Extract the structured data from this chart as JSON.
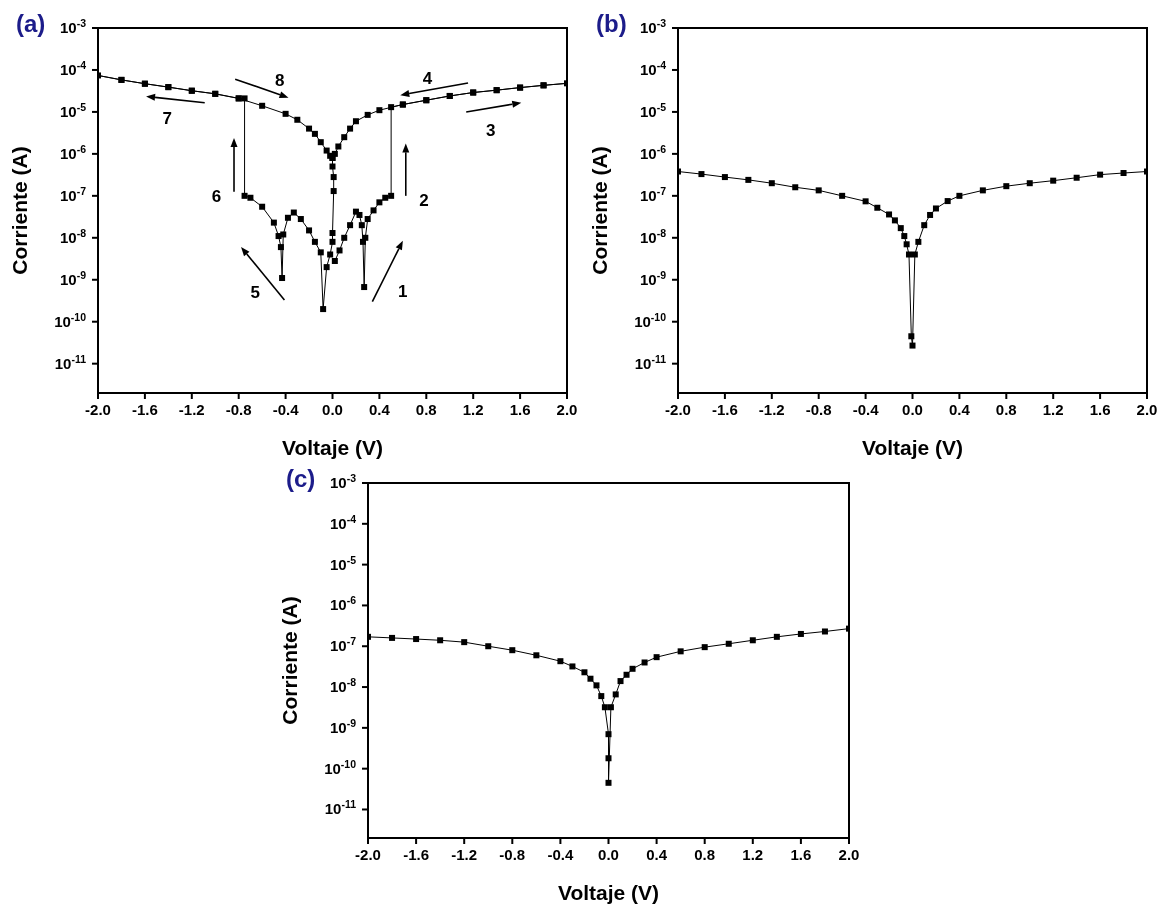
{
  "chart_data": [
    {
      "type": "line",
      "title": "(a)",
      "xlabel": "Voltaje (V)",
      "ylabel": "Corriente (A)",
      "log": "y",
      "marker": "square",
      "line_style": "solid",
      "xlim": [
        -2,
        2
      ],
      "xticks": [
        {
          "value": -2,
          "label": "-2.0"
        },
        {
          "value": -1.6,
          "label": "-1.6"
        },
        {
          "value": -1.2,
          "label": "-1.2"
        },
        {
          "value": -0.8,
          "label": "-0.8"
        },
        {
          "value": -0.4,
          "label": "-0.4"
        },
        {
          "value": 0,
          "label": "0.0"
        },
        {
          "value": 0.4,
          "label": "0.4"
        },
        {
          "value": 0.8,
          "label": "0.8"
        },
        {
          "value": 1.2,
          "label": "1.2"
        },
        {
          "value": 1.6,
          "label": "1.6"
        },
        {
          "value": 2,
          "label": "2.0"
        }
      ],
      "ylim": [
        2e-12,
        0.001
      ],
      "yticks": [
        {
          "value": 0.001,
          "label": "10$^{-3}$"
        },
        {
          "value": 0.0001,
          "label": "10$^{-4}$"
        },
        {
          "value": 1e-05,
          "label": "10$^{-5}$"
        },
        {
          "value": 1e-06,
          "label": "10$^{-6}$"
        },
        {
          "value": 1e-07,
          "label": "10$^{-7}$"
        },
        {
          "value": 1e-08,
          "label": "10$^{-8}$"
        },
        {
          "value": 1e-09,
          "label": "10$^{-9}$"
        },
        {
          "value": 1e-10,
          "label": "10$^{-10}$"
        },
        {
          "value": 1e-11,
          "label": "10$^{-11}$"
        }
      ],
      "annotations": [
        "1",
        "2",
        "3",
        "4",
        "5",
        "6",
        "7",
        "8"
      ],
      "series": [
        {
          "color": "#000000",
          "x": [
            0.02,
            0.06,
            0.1,
            0.15,
            0.2,
            0.23,
            0.25,
            0.26,
            0.27,
            0.28,
            0.3,
            0.35,
            0.4,
            0.45,
            0.5,
            0.5,
            0.6,
            0.8,
            1.0,
            1.2,
            1.4,
            1.6,
            1.8,
            2.0,
            1.8,
            1.6,
            1.4,
            1.2,
            1.0,
            0.8,
            0.6,
            0.4,
            0.3,
            0.2,
            0.15,
            0.1,
            0.05,
            0.02,
            0,
            0,
            0.01,
            0.01,
            0,
            0,
            -0.02,
            -0.05,
            -0.08,
            -0.1,
            -0.15,
            -0.2,
            -0.27,
            -0.33,
            -0.38,
            -0.42,
            -0.43,
            -0.44,
            -0.46,
            -0.5,
            -0.6,
            -0.7,
            -0.75,
            -0.75,
            -0.8,
            -1.0,
            -1.2,
            -1.4,
            -1.6,
            -1.8,
            -2.0,
            -1.8,
            -1.6,
            -1.4,
            -1.2,
            -1.0,
            -0.8,
            -0.6,
            -0.4,
            -0.3,
            -0.2,
            -0.15,
            -0.1,
            -0.05,
            -0.02,
            0
          ],
          "values": [
            2.8e-09,
            5e-09,
            1e-08,
            2e-08,
            4.2e-08,
            3.5e-08,
            2e-08,
            8e-09,
            6.7e-10,
            1e-08,
            2.8e-08,
            4.5e-08,
            7e-08,
            9e-08,
            1e-07,
            1.3e-05,
            1.5e-05,
            1.9e-05,
            2.4e-05,
            2.9e-05,
            3.3e-05,
            3.8e-05,
            4.3e-05,
            4.8e-05,
            4.3e-05,
            3.8e-05,
            3.3e-05,
            2.9e-05,
            2.4e-05,
            1.9e-05,
            1.5e-05,
            1.1e-05,
            8.5e-06,
            6e-06,
            4e-06,
            2.5e-06,
            1.5e-06,
            1e-06,
            8e-07,
            5e-07,
            2.8e-07,
            1.3e-07,
            1.3e-08,
            8e-09,
            4e-09,
            2e-09,
            2e-10,
            4.5e-09,
            8e-09,
            1.5e-08,
            2.8e-08,
            4e-08,
            3e-08,
            1.2e-08,
            1.1e-09,
            6e-09,
            1.1e-08,
            2.3e-08,
            5.5e-08,
            9e-08,
            1e-07,
            2.1e-05,
            2.1e-05,
            2.7e-05,
            3.2e-05,
            3.9e-05,
            4.7e-05,
            5.8e-05,
            7.4e-05,
            5.8e-05,
            4.7e-05,
            3.9e-05,
            3.2e-05,
            2.7e-05,
            2.1e-05,
            1.4e-05,
            9e-06,
            6.5e-06,
            4e-06,
            3e-06,
            1.9e-06,
            1.2e-06,
            9e-07,
            8e-07
          ]
        }
      ]
    },
    {
      "type": "line",
      "title": "(b)",
      "xlabel": "Voltaje (V)",
      "ylabel": "Corriente (A)",
      "log": "y",
      "marker": "square",
      "line_style": "solid",
      "xlim": [
        -2,
        2
      ],
      "xticks": [
        {
          "value": -2,
          "label": "-2.0"
        },
        {
          "value": -1.6,
          "label": "-1.6"
        },
        {
          "value": -1.2,
          "label": "-1.2"
        },
        {
          "value": -0.8,
          "label": "-0.8"
        },
        {
          "value": -0.4,
          "label": "-0.4"
        },
        {
          "value": 0,
          "label": "0.0"
        },
        {
          "value": 0.4,
          "label": "0.4"
        },
        {
          "value": 0.8,
          "label": "0.8"
        },
        {
          "value": 1.2,
          "label": "1.2"
        },
        {
          "value": 1.6,
          "label": "1.6"
        },
        {
          "value": 2,
          "label": "2.0"
        }
      ],
      "ylim": [
        2e-12,
        0.001
      ],
      "yticks": [
        {
          "value": 0.001,
          "label": "10$^{-3}$"
        },
        {
          "value": 0.0001,
          "label": "10$^{-4}$"
        },
        {
          "value": 1e-05,
          "label": "10$^{-5}$"
        },
        {
          "value": 1e-06,
          "label": "10$^{-6}$"
        },
        {
          "value": 1e-07,
          "label": "10$^{-7}$"
        },
        {
          "value": 1e-08,
          "label": "10$^{-8}$"
        },
        {
          "value": 1e-09,
          "label": "10$^{-9}$"
        },
        {
          "value": 1e-10,
          "label": "10$^{-10}$"
        },
        {
          "value": 1e-11,
          "label": "10$^{-11}$"
        }
      ],
      "series": [
        {
          "color": "#000000",
          "x": [
            -2.0,
            -1.8,
            -1.6,
            -1.4,
            -1.2,
            -1.0,
            -0.8,
            -0.6,
            -0.4,
            -0.3,
            -0.2,
            -0.15,
            -0.1,
            -0.07,
            -0.05,
            -0.03,
            -0.01,
            0,
            0.02,
            0.05,
            0.1,
            0.15,
            0.2,
            0.3,
            0.4,
            0.6,
            0.8,
            1.0,
            1.2,
            1.4,
            1.6,
            1.8,
            2.0
          ],
          "values": [
            3.8e-07,
            3.3e-07,
            2.8e-07,
            2.4e-07,
            2e-07,
            1.6e-07,
            1.35e-07,
            1e-07,
            7.4e-08,
            5.2e-08,
            3.6e-08,
            2.6e-08,
            1.7e-08,
            1.1e-08,
            7e-09,
            4e-09,
            4.5e-11,
            2.7e-11,
            4e-09,
            8e-09,
            2e-08,
            3.5e-08,
            5e-08,
            7.5e-08,
            1e-07,
            1.35e-07,
            1.7e-07,
            2e-07,
            2.3e-07,
            2.7e-07,
            3.2e-07,
            3.5e-07,
            3.8e-07
          ]
        }
      ]
    },
    {
      "type": "line",
      "title": "(c)",
      "xlabel": "Voltaje (V)",
      "ylabel": "Corriente (A)",
      "log": "y",
      "marker": "square",
      "line_style": "solid",
      "xlim": [
        -2,
        2
      ],
      "xticks": [
        {
          "value": -2,
          "label": "-2.0"
        },
        {
          "value": -1.6,
          "label": "-1.6"
        },
        {
          "value": -1.2,
          "label": "-1.2"
        },
        {
          "value": -0.8,
          "label": "-0.8"
        },
        {
          "value": -0.4,
          "label": "-0.4"
        },
        {
          "value": 0,
          "label": "0.0"
        },
        {
          "value": 0.4,
          "label": "0.4"
        },
        {
          "value": 0.8,
          "label": "0.8"
        },
        {
          "value": 1.2,
          "label": "1.2"
        },
        {
          "value": 1.6,
          "label": "1.6"
        },
        {
          "value": 2,
          "label": "2.0"
        }
      ],
      "ylim": [
        2e-12,
        0.001
      ],
      "yticks": [
        {
          "value": 0.001,
          "label": "10$^{-3}$"
        },
        {
          "value": 0.0001,
          "label": "10$^{-4}$"
        },
        {
          "value": 1e-05,
          "label": "10$^{-5}$"
        },
        {
          "value": 1e-06,
          "label": "10$^{-6}$"
        },
        {
          "value": 1e-07,
          "label": "10$^{-7}$"
        },
        {
          "value": 1e-08,
          "label": "10$^{-8}$"
        },
        {
          "value": 1e-09,
          "label": "10$^{-9}$"
        },
        {
          "value": 1e-10,
          "label": "10$^{-10}$"
        },
        {
          "value": 1e-11,
          "label": "10$^{-11}$"
        }
      ],
      "series": [
        {
          "color": "#000000",
          "x": [
            -2.0,
            -1.8,
            -1.6,
            -1.4,
            -1.2,
            -1.0,
            -0.8,
            -0.6,
            -0.4,
            -0.3,
            -0.2,
            -0.15,
            -0.1,
            -0.06,
            -0.03,
            0,
            0,
            0,
            0.02,
            0.06,
            0.1,
            0.15,
            0.2,
            0.3,
            0.4,
            0.6,
            0.8,
            1.0,
            1.2,
            1.4,
            1.6,
            1.8,
            2.0
          ],
          "values": [
            1.7e-07,
            1.6e-07,
            1.5e-07,
            1.4e-07,
            1.26e-07,
            1e-07,
            8e-08,
            6e-08,
            4.3e-08,
            3.2e-08,
            2.3e-08,
            1.6e-08,
            1.1e-08,
            6e-09,
            3.2e-09,
            7e-10,
            1.8e-10,
            4.5e-11,
            3.2e-09,
            6.6e-09,
            1.4e-08,
            2e-08,
            2.8e-08,
            4e-08,
            5.4e-08,
            7.5e-08,
            9.5e-08,
            1.15e-07,
            1.4e-07,
            1.7e-07,
            2e-07,
            2.3e-07,
            2.7e-07
          ]
        }
      ]
    }
  ]
}
